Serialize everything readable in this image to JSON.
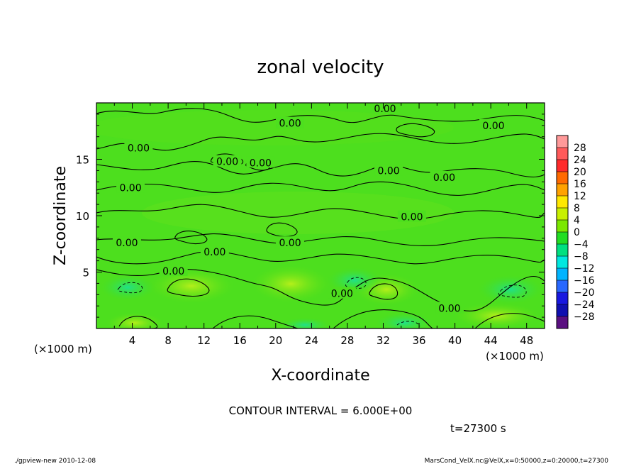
{
  "chart_data": {
    "type": "heatmap",
    "title": "zonal velocity",
    "xlabel": "X-coordinate",
    "ylabel": "Z-coordinate",
    "x_unit": "(×1000 m)",
    "x_unit_right": "(×1000 m)",
    "x_ticks": [
      4,
      8,
      12,
      16,
      20,
      24,
      28,
      32,
      36,
      40,
      44,
      48
    ],
    "y_ticks": [
      5,
      10,
      15
    ],
    "xlim": [
      0,
      50
    ],
    "ylim": [
      0,
      20
    ],
    "contour_label": "0.00",
    "contour_labels": [
      {
        "x": 32.2,
        "z": 19.5
      },
      {
        "x": 21.6,
        "z": 18.2
      },
      {
        "x": 44.3,
        "z": 18.0
      },
      {
        "x": 4.7,
        "z": 16.0
      },
      {
        "x": 14.6,
        "z": 14.8
      },
      {
        "x": 18.3,
        "z": 14.7
      },
      {
        "x": 32.6,
        "z": 14.0
      },
      {
        "x": 38.8,
        "z": 13.4
      },
      {
        "x": 3.8,
        "z": 12.5
      },
      {
        "x": 35.2,
        "z": 9.9
      },
      {
        "x": 3.4,
        "z": 7.6
      },
      {
        "x": 13.2,
        "z": 6.8
      },
      {
        "x": 21.6,
        "z": 7.6
      },
      {
        "x": 8.6,
        "z": 5.1
      },
      {
        "x": 27.4,
        "z": 3.1
      },
      {
        "x": 39.4,
        "z": 1.8
      }
    ],
    "colorbar": {
      "levels": [
        "28",
        "24",
        "20",
        "16",
        "12",
        "8",
        "4",
        "0",
        "−4",
        "−8",
        "−12",
        "−16",
        "−20",
        "−24",
        "−28"
      ],
      "colors": [
        "#ff9999",
        "#ff5a5a",
        "#ff2a2a",
        "#ff6a00",
        "#ffa200",
        "#ffe800",
        "#c8f000",
        "#7be800",
        "#22dd22",
        "#00e080",
        "#00e8e0",
        "#00b4ff",
        "#2868ff",
        "#1818e0",
        "#1010b0",
        "#5a1080"
      ]
    },
    "contour_interval": "CONTOUR INTERVAL = 6.000E+00",
    "time_label": "t=27300 s"
  },
  "footer": {
    "left": "./gpview-new  2010-12-08",
    "right": "MarsCond_VelX.nc@VelX,x=0:50000,z=0:20000,t=27300"
  }
}
